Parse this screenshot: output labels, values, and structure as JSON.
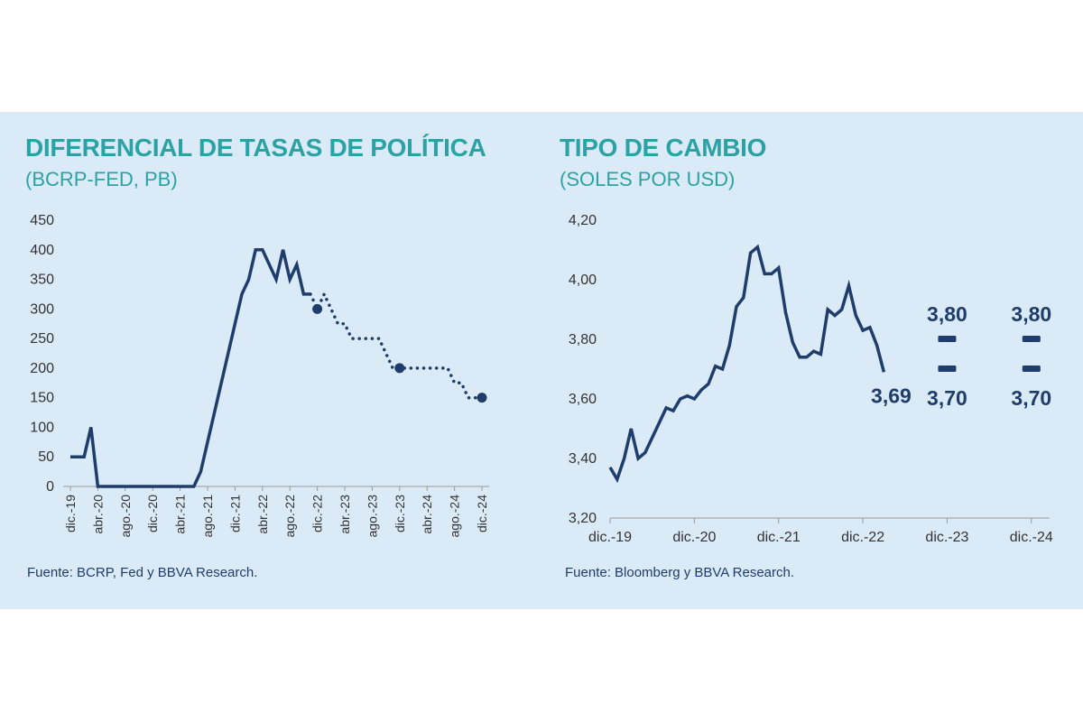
{
  "colors": {
    "background_panel": "#dbeaf7",
    "title": "#2ba3a4",
    "series": "#1f3d6b",
    "axis": "#999999",
    "text": "#333333"
  },
  "chart_data": [
    {
      "type": "line",
      "title": "DIFERENCIAL DE TASAS DE POLÍTICA",
      "subtitle": "(BCRP-FED, PB)",
      "source": "Fuente: BCRP, Fed y BBVA Research.",
      "ylim": [
        0,
        450
      ],
      "yticks": [
        "0",
        "50",
        "100",
        "150",
        "200",
        "250",
        "300",
        "350",
        "400",
        "450"
      ],
      "xticks": [
        "dic.-19",
        "abr.-20",
        "ago.-20",
        "dic.-20",
        "abr.-21",
        "ago.-21",
        "dic.-21",
        "abr.-22",
        "ago.-22",
        "dic.-22",
        "abr.-23",
        "ago.-23",
        "dic.-23",
        "abr.-24",
        "ago.-24",
        "dic.-24"
      ],
      "grid": false,
      "series": [
        {
          "style": "solid",
          "x": [
            "dic.-19",
            "ene.-20",
            "feb.-20",
            "mar.-20",
            "abr.-20",
            "may.-20",
            "jun.-20",
            "jul.-20",
            "ago.-20",
            "sep.-20",
            "oct.-20",
            "nov.-20",
            "dic.-20",
            "ene.-21",
            "feb.-21",
            "mar.-21",
            "abr.-21",
            "may.-21",
            "jun.-21",
            "jul.-21",
            "ago.-21",
            "sep.-21",
            "oct.-21",
            "nov.-21",
            "dic.-21",
            "ene.-22",
            "feb.-22",
            "mar.-22",
            "abr.-22",
            "may.-22",
            "jun.-22",
            "jul.-22",
            "ago.-22",
            "sep.-22",
            "oct.-22",
            "nov.-22"
          ],
          "values": [
            50,
            50,
            50,
            100,
            0,
            0,
            0,
            0,
            0,
            0,
            0,
            0,
            0,
            0,
            0,
            0,
            0,
            0,
            0,
            25,
            75,
            125,
            175,
            225,
            275,
            325,
            350,
            400,
            400,
            375,
            350,
            400,
            350,
            375,
            325,
            325
          ]
        },
        {
          "style": "dotted",
          "x": [
            "nov.-22",
            "dic.-22",
            "ene.-23",
            "feb.-23",
            "mar.-23",
            "abr.-23",
            "may.-23",
            "jun.-23",
            "jul.-23",
            "ago.-23",
            "sep.-23",
            "oct.-23",
            "nov.-23",
            "dic.-23",
            "ene.-24",
            "feb.-24",
            "mar.-24",
            "abr.-24",
            "may.-24",
            "jun.-24",
            "jul.-24",
            "ago.-24",
            "sep.-24",
            "oct.-24",
            "nov.-24",
            "dic.-24"
          ],
          "values": [
            325,
            300,
            325,
            300,
            275,
            275,
            250,
            250,
            250,
            250,
            250,
            225,
            200,
            200,
            200,
            200,
            200,
            200,
            200,
            200,
            200,
            175,
            175,
            150,
            150,
            150
          ]
        }
      ],
      "markers": [
        {
          "x": "dic.-22",
          "value": 300
        },
        {
          "x": "dic.-23",
          "value": 200
        },
        {
          "x": "dic.-24",
          "value": 150
        }
      ]
    },
    {
      "type": "line",
      "title": "TIPO DE CAMBIO",
      "subtitle": "(SOLES POR USD)",
      "source": "Fuente: Bloomberg y BBVA Research.",
      "ylim": [
        3.2,
        4.2
      ],
      "yticks": [
        "3,20",
        "3,40",
        "3,60",
        "3,80",
        "4,00",
        "4,20"
      ],
      "xticks": [
        "dic.-19",
        "dic.-20",
        "dic.-21",
        "dic.-22",
        "dic.-23",
        "dic.-24"
      ],
      "grid": false,
      "series": [
        {
          "style": "solid",
          "x": [
            "dic.-19",
            "ene.-20",
            "feb.-20",
            "mar.-20",
            "abr.-20",
            "may.-20",
            "jun.-20",
            "jul.-20",
            "ago.-20",
            "sep.-20",
            "oct.-20",
            "nov.-20",
            "dic.-20",
            "ene.-21",
            "feb.-21",
            "mar.-21",
            "abr.-21",
            "may.-21",
            "jun.-21",
            "jul.-21",
            "ago.-21",
            "sep.-21",
            "oct.-21",
            "nov.-21",
            "dic.-21",
            "ene.-22",
            "feb.-22",
            "mar.-22",
            "abr.-22",
            "may.-22",
            "jun.-22",
            "jul.-22",
            "ago.-22",
            "sep.-22",
            "oct.-22",
            "nov.-22",
            "dic.-22",
            "ene.-23",
            "feb.-23",
            "mar.-23"
          ],
          "values": [
            3.37,
            3.33,
            3.4,
            3.5,
            3.4,
            3.42,
            3.47,
            3.52,
            3.57,
            3.56,
            3.6,
            3.61,
            3.6,
            3.63,
            3.65,
            3.71,
            3.7,
            3.78,
            3.91,
            3.94,
            4.09,
            4.11,
            4.02,
            4.02,
            4.04,
            3.89,
            3.79,
            3.74,
            3.74,
            3.76,
            3.75,
            3.9,
            3.88,
            3.9,
            3.98,
            3.88,
            3.83,
            3.84,
            3.78,
            3.69
          ]
        }
      ],
      "annotations": [
        {
          "label": "3,69",
          "x": "mar.-23",
          "value": 3.69
        },
        {
          "label": "3,80",
          "x": "dic.-23",
          "value": 3.8
        },
        {
          "label": "3,70",
          "x": "dic.-23",
          "value": 3.7
        },
        {
          "label": "3,80",
          "x": "dic.-24",
          "value": 3.8
        },
        {
          "label": "3,70",
          "x": "dic.-24",
          "value": 3.7
        }
      ]
    }
  ]
}
